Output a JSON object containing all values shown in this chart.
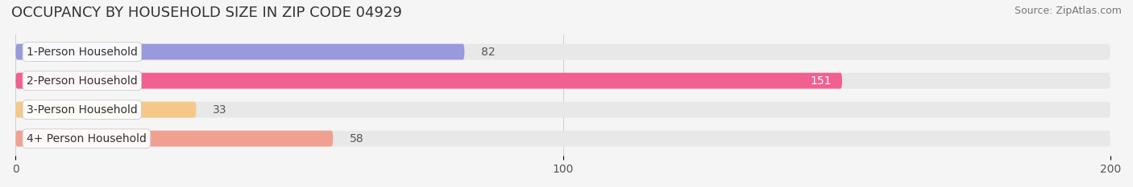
{
  "title": "OCCUPANCY BY HOUSEHOLD SIZE IN ZIP CODE 04929",
  "source": "Source: ZipAtlas.com",
  "categories": [
    "1-Person Household",
    "2-Person Household",
    "3-Person Household",
    "4+ Person Household"
  ],
  "values": [
    82,
    151,
    33,
    58
  ],
  "bar_colors": [
    "#9999dd",
    "#f06090",
    "#f5c888",
    "#f0a090"
  ],
  "bar_bg_color": "#e8e8e8",
  "xlim": [
    0,
    200
  ],
  "xticks": [
    0,
    100,
    200
  ],
  "label_colors": [
    "#555555",
    "#ffffff",
    "#555555",
    "#555555"
  ],
  "value_label_inside": [
    false,
    true,
    false,
    false
  ],
  "background_color": "#f5f5f5",
  "title_fontsize": 13,
  "source_fontsize": 9,
  "tick_fontsize": 10,
  "bar_label_fontsize": 10,
  "bar_height": 0.55
}
